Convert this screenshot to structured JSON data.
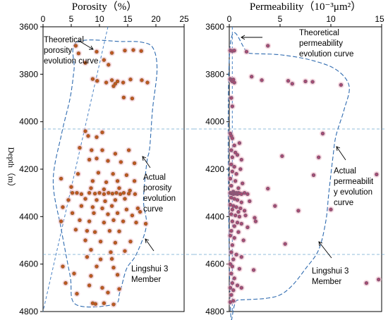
{
  "chart_data": [
    {
      "type": "scatter",
      "title": "Porosity（%）",
      "xlim": [
        0,
        25
      ],
      "ylim": [
        3600,
        4800
      ],
      "x_ticks": [
        "0",
        "5",
        "10",
        "15",
        "20",
        "25"
      ],
      "y_ticks": [
        "3600",
        "3800",
        "4000",
        "4200",
        "4400",
        "4600",
        "4800"
      ],
      "ylabel": "Depth（m）",
      "annotations": {
        "theoretical": "Theoretical porosity evolution curve",
        "actual": "Actual porosity evolution curve",
        "member": "Lingshui 3 Member"
      },
      "member_bounds": [
        4030,
        4555
      ],
      "theoretical_curve": [
        [
          11.5,
          3600
        ],
        [
          0,
          4800
        ]
      ],
      "actual_envelope": [
        [
          6,
          3665
        ],
        [
          14,
          3662
        ],
        [
          17.5,
          3665
        ],
        [
          19.5,
          3690
        ],
        [
          20.2,
          3780
        ],
        [
          19.4,
          3950
        ],
        [
          18.9,
          4110
        ],
        [
          18.4,
          4170
        ],
        [
          17.8,
          4330
        ],
        [
          18.3,
          4440
        ],
        [
          16.5,
          4560
        ],
        [
          14.8,
          4620
        ],
        [
          13.6,
          4720
        ],
        [
          12.5,
          4770
        ],
        [
          5.8,
          4770
        ],
        [
          4.8,
          4650
        ],
        [
          3.2,
          4450
        ],
        [
          1.8,
          4250
        ],
        [
          3.3,
          4050
        ],
        [
          4.8,
          3900
        ],
        [
          5.5,
          3780
        ],
        [
          6,
          3665
        ]
      ],
      "points": [
        [
          5.8,
          3680
        ],
        [
          6.3,
          3712
        ],
        [
          9.5,
          3705
        ],
        [
          12.2,
          3710
        ],
        [
          14.5,
          3700
        ],
        [
          16,
          3698
        ],
        [
          17.4,
          3702
        ],
        [
          7.5,
          3752
        ],
        [
          10.8,
          3740
        ],
        [
          11.6,
          3760
        ],
        [
          8.8,
          3820
        ],
        [
          9.6,
          3828
        ],
        [
          11.2,
          3835
        ],
        [
          12.2,
          3825
        ],
        [
          12.8,
          3840
        ],
        [
          13.2,
          3830
        ],
        [
          14.2,
          3835
        ],
        [
          15.5,
          3822
        ],
        [
          17.5,
          3825
        ],
        [
          18.5,
          3835
        ],
        [
          12.5,
          3850
        ],
        [
          14.3,
          3898
        ],
        [
          15.8,
          3902
        ],
        [
          7.5,
          4040
        ],
        [
          8,
          4060
        ],
        [
          9.5,
          4065
        ],
        [
          10.5,
          4045
        ],
        [
          6.5,
          4110
        ],
        [
          8.6,
          4120
        ],
        [
          10.5,
          4120
        ],
        [
          12.8,
          4135
        ],
        [
          15.2,
          4120
        ],
        [
          8.2,
          4160
        ],
        [
          9.5,
          4155
        ],
        [
          11.5,
          4165
        ],
        [
          13.8,
          4170
        ],
        [
          16.2,
          4175
        ],
        [
          6.2,
          4220
        ],
        [
          9.8,
          4215
        ],
        [
          12.4,
          4220
        ],
        [
          14.8,
          4225
        ],
        [
          3.2,
          4240
        ],
        [
          8.8,
          4250
        ],
        [
          11.2,
          4255
        ],
        [
          13.2,
          4250
        ],
        [
          16.2,
          4250
        ],
        [
          5,
          4275
        ],
        [
          8.5,
          4280
        ],
        [
          10.8,
          4285
        ],
        [
          13.5,
          4280
        ],
        [
          15.4,
          4290
        ],
        [
          5.2,
          4300
        ],
        [
          6,
          4300
        ],
        [
          6.8,
          4305
        ],
        [
          8.2,
          4300
        ],
        [
          9.2,
          4303
        ],
        [
          10,
          4300
        ],
        [
          10.8,
          4305
        ],
        [
          11.6,
          4300
        ],
        [
          12.3,
          4303
        ],
        [
          13,
          4300
        ],
        [
          13.7,
          4305
        ],
        [
          14.3,
          4300
        ],
        [
          15.2,
          4303
        ],
        [
          16.3,
          4305
        ],
        [
          4.5,
          4330
        ],
        [
          7.5,
          4325
        ],
        [
          9.5,
          4330
        ],
        [
          11,
          4335
        ],
        [
          12.8,
          4330
        ],
        [
          14.5,
          4325
        ],
        [
          3.5,
          4360
        ],
        [
          6.8,
          4355
        ],
        [
          8.8,
          4360
        ],
        [
          10.5,
          4365
        ],
        [
          12.2,
          4355
        ],
        [
          14.8,
          4370
        ],
        [
          16.8,
          4365
        ],
        [
          5.2,
          4385
        ],
        [
          9,
          4385
        ],
        [
          11.5,
          4390
        ],
        [
          13.2,
          4385
        ],
        [
          15.8,
          4395
        ],
        [
          17.2,
          4380
        ],
        [
          3.2,
          4420
        ],
        [
          6.5,
          4415
        ],
        [
          8.2,
          4420
        ],
        [
          10.8,
          4425
        ],
        [
          12.5,
          4415
        ],
        [
          14.2,
          4420
        ],
        [
          16.5,
          4425
        ],
        [
          18.2,
          4430
        ],
        [
          5.8,
          4455
        ],
        [
          7.8,
          4460
        ],
        [
          9.2,
          4465
        ],
        [
          11.8,
          4460
        ],
        [
          13.5,
          4462
        ],
        [
          7.5,
          4500
        ],
        [
          10.2,
          4505
        ],
        [
          12.8,
          4510
        ],
        [
          15.5,
          4505
        ],
        [
          8.5,
          4540
        ],
        [
          12,
          4550
        ],
        [
          14.5,
          4545
        ],
        [
          7.8,
          4570
        ],
        [
          10.2,
          4580
        ],
        [
          12.2,
          4578
        ],
        [
          3.5,
          4610
        ],
        [
          9.5,
          4610
        ],
        [
          12.5,
          4615
        ],
        [
          5.5,
          4640
        ],
        [
          8.5,
          4650
        ],
        [
          13.2,
          4645
        ],
        [
          4,
          4680
        ],
        [
          8.2,
          4690
        ],
        [
          10.5,
          4700
        ],
        [
          13.5,
          4705
        ],
        [
          6,
          4725
        ],
        [
          11.5,
          4720
        ],
        [
          8.8,
          4765
        ],
        [
          9.3,
          4768
        ],
        [
          10.8,
          4765
        ],
        [
          12.5,
          4770
        ]
      ]
    },
    {
      "type": "scatter",
      "title": "Permeability（10⁻³μm²）",
      "xlim": [
        0,
        15
      ],
      "ylim": [
        3600,
        4800
      ],
      "x_ticks": [
        "0",
        "5",
        "10",
        "15"
      ],
      "y_ticks": [
        "3600",
        "3800",
        "4000",
        "4200",
        "4400",
        "4600",
        "4800"
      ],
      "ylabel": "",
      "annotations": {
        "theoretical": "Theoretical permeability evolution curve",
        "actual": "Actual permeability evolution curve",
        "member": "Lingshui 3 Member"
      },
      "member_bounds": [
        4030,
        4555
      ],
      "theoretical_curve": [
        [
          0.3,
          3600
        ],
        [
          0.3,
          4800
        ]
      ],
      "actual_envelope": [
        [
          0.05,
          3700
        ],
        [
          2,
          3712
        ],
        [
          5,
          3718
        ],
        [
          8,
          3740
        ],
        [
          10.5,
          3780
        ],
        [
          11.8,
          3850
        ],
        [
          11.3,
          3950
        ],
        [
          10.5,
          4060
        ],
        [
          10.2,
          4150
        ],
        [
          9.8,
          4300
        ],
        [
          9.5,
          4420
        ],
        [
          8.8,
          4540
        ],
        [
          7.5,
          4620
        ],
        [
          6.2,
          4690
        ],
        [
          5,
          4730
        ],
        [
          3.5,
          4745
        ],
        [
          0.8,
          4752
        ],
        [
          0.1,
          4760
        ],
        [
          0.05,
          3700
        ]
      ],
      "points": [
        [
          0.1,
          3700
        ],
        [
          0.3,
          3702
        ],
        [
          0.5,
          3700
        ],
        [
          1.7,
          3705
        ],
        [
          3.8,
          3680
        ],
        [
          0.1,
          3820
        ],
        [
          0.2,
          3825
        ],
        [
          0.3,
          3830
        ],
        [
          0.4,
          3822
        ],
        [
          0.5,
          3835
        ],
        [
          2.2,
          3810
        ],
        [
          3.2,
          3825
        ],
        [
          5.8,
          3828
        ],
        [
          6.2,
          3840
        ],
        [
          7.5,
          3830
        ],
        [
          8.2,
          3832
        ],
        [
          11,
          3845
        ],
        [
          0.2,
          3900
        ],
        [
          0.3,
          3935
        ],
        [
          0.1,
          4050
        ],
        [
          0.2,
          4060
        ],
        [
          0.3,
          4070
        ],
        [
          9.2,
          4050
        ],
        [
          1,
          4090
        ],
        [
          0.5,
          4100
        ],
        [
          0.2,
          4120
        ],
        [
          0.6,
          4130
        ],
        [
          0.8,
          4140
        ],
        [
          0.3,
          4150
        ],
        [
          5.2,
          4145
        ],
        [
          8.8,
          4150
        ],
        [
          1.2,
          4160
        ],
        [
          0.2,
          4180
        ],
        [
          0.5,
          4190
        ],
        [
          1.1,
          4200
        ],
        [
          0.3,
          4210
        ],
        [
          0.7,
          4220
        ],
        [
          8.3,
          4225
        ],
        [
          14.5,
          4222
        ],
        [
          0.1,
          4240
        ],
        [
          0.6,
          4250
        ],
        [
          1.3,
          4260
        ],
        [
          0.2,
          4270
        ],
        [
          0.9,
          4280
        ],
        [
          3.8,
          4282
        ],
        [
          0.4,
          4295
        ],
        [
          0.1,
          4300
        ],
        [
          0.2,
          4302
        ],
        [
          0.3,
          4300
        ],
        [
          0.4,
          4305
        ],
        [
          0.5,
          4300
        ],
        [
          0.6,
          4303
        ],
        [
          0.7,
          4300
        ],
        [
          0.8,
          4305
        ],
        [
          0.9,
          4300
        ],
        [
          1,
          4302
        ],
        [
          1.2,
          4305
        ],
        [
          1.5,
          4300
        ],
        [
          1.8,
          4305
        ],
        [
          0.2,
          4320
        ],
        [
          0.5,
          4325
        ],
        [
          0.8,
          4330
        ],
        [
          1.2,
          4340
        ],
        [
          2,
          4335
        ],
        [
          0.1,
          4350
        ],
        [
          0.4,
          4355
        ],
        [
          0.7,
          4360
        ],
        [
          1.1,
          4365
        ],
        [
          4.5,
          4355
        ],
        [
          0.3,
          4370
        ],
        [
          0.9,
          4380
        ],
        [
          1.5,
          4375
        ],
        [
          6.8,
          4375
        ],
        [
          10,
          4370
        ],
        [
          0.2,
          4390
        ],
        [
          0.6,
          4395
        ],
        [
          1,
          4400
        ],
        [
          1.6,
          4395
        ],
        [
          2.5,
          4405
        ],
        [
          0.3,
          4420
        ],
        [
          0.8,
          4425
        ],
        [
          1.2,
          4430
        ],
        [
          2.6,
          4420
        ],
        [
          0.5,
          4440
        ],
        [
          1.8,
          4445
        ],
        [
          0.2,
          4460
        ],
        [
          0.9,
          4465
        ],
        [
          0.1,
          4480
        ],
        [
          0.5,
          4490
        ],
        [
          1.4,
          4500
        ],
        [
          5.5,
          4515
        ],
        [
          0.3,
          4520
        ],
        [
          0.2,
          4550
        ],
        [
          0.7,
          4560
        ],
        [
          1.2,
          4570
        ],
        [
          0.4,
          4580
        ],
        [
          0.1,
          4600
        ],
        [
          0.3,
          4610
        ],
        [
          1,
          4620
        ],
        [
          2.4,
          4625
        ],
        [
          0.2,
          4640
        ],
        [
          0.5,
          4660
        ],
        [
          0.3,
          4680
        ],
        [
          0.8,
          4690
        ],
        [
          0.1,
          4700
        ],
        [
          0.4,
          4710
        ],
        [
          1.2,
          4700
        ],
        [
          13.5,
          4680
        ],
        [
          14.7,
          4665
        ],
        [
          0.2,
          4730
        ],
        [
          0.4,
          4755
        ],
        [
          0.1,
          4760
        ]
      ]
    }
  ]
}
